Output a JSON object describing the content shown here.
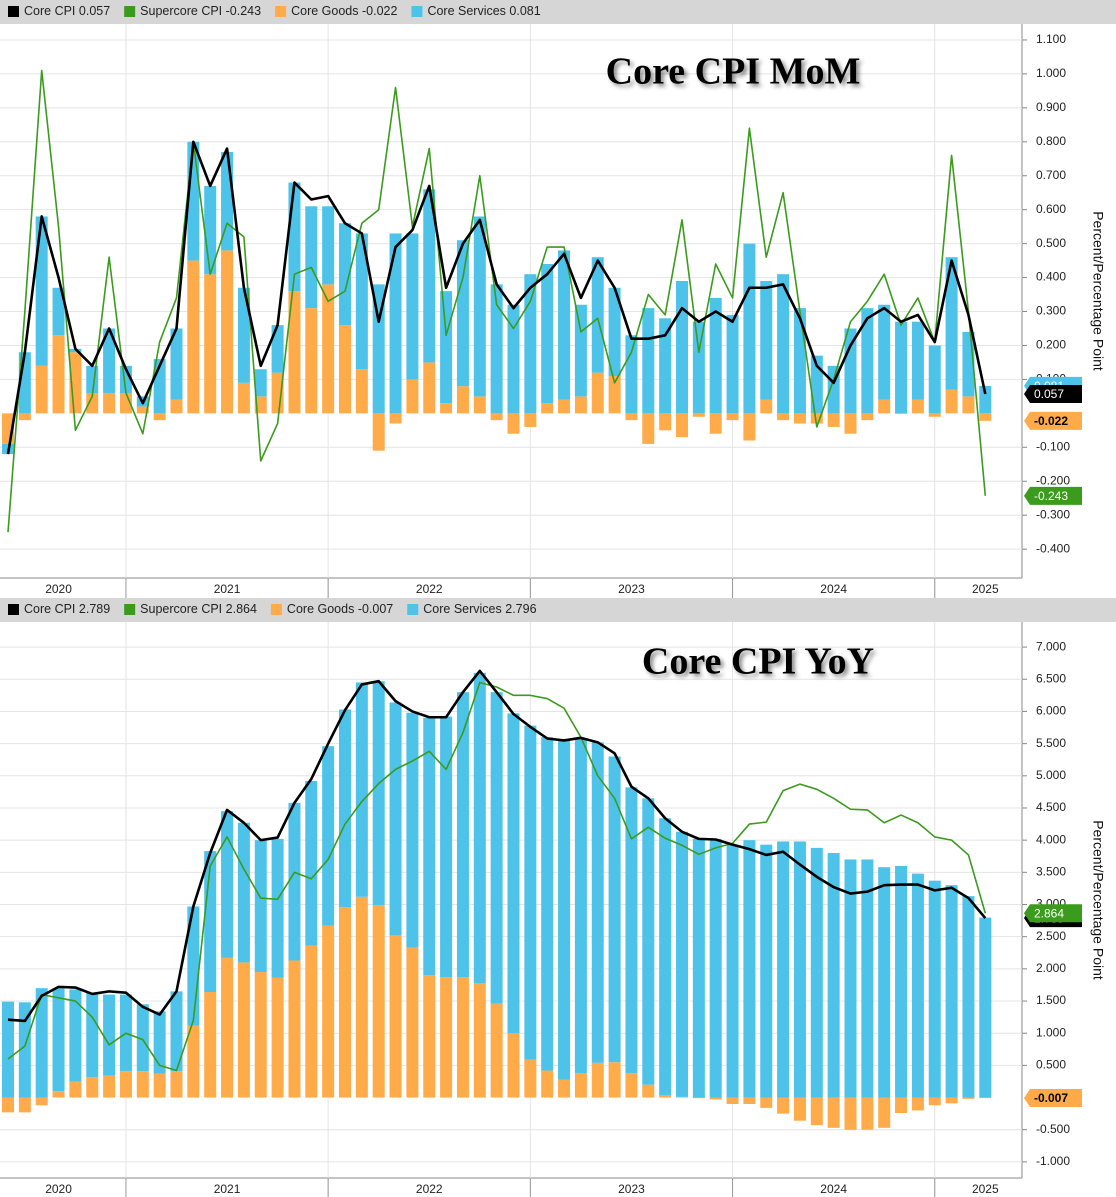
{
  "chart_data": [
    {
      "type": "bar",
      "title": "Core CPI MoM",
      "y_label": "Percent/Percentage Point",
      "categories": [
        null,
        null,
        null,
        "2020",
        null,
        null,
        null,
        null,
        null,
        null,
        null,
        null,
        null,
        "2021",
        null,
        null,
        null,
        null,
        null,
        null,
        null,
        null,
        null,
        null,
        null,
        "2022",
        null,
        null,
        null,
        null,
        null,
        null,
        null,
        null,
        null,
        null,
        null,
        "2023",
        null,
        null,
        null,
        null,
        null,
        null,
        null,
        null,
        null,
        null,
        null,
        "2024",
        null,
        null,
        null,
        null,
        null,
        null,
        null,
        null,
        "2025"
      ],
      "ylim": [
        -0.485,
        1.147
      ],
      "yticks": [
        {
          "value": 1.1,
          "label": "1.100"
        },
        {
          "value": 1.0,
          "label": "1.000"
        },
        {
          "value": 0.9,
          "label": "0.900"
        },
        {
          "value": 0.8,
          "label": "0.800"
        },
        {
          "value": 0.7,
          "label": "0.700"
        },
        {
          "value": 0.6,
          "label": "0.600"
        },
        {
          "value": 0.5,
          "label": "0.500"
        },
        {
          "value": 0.4,
          "label": "0.400"
        },
        {
          "value": 0.3,
          "label": "0.300"
        },
        {
          "value": 0.2,
          "label": "0.200"
        },
        {
          "value": 0.1,
          "label": "0.100"
        },
        {
          "value": -0.1,
          "label": "-0.100"
        },
        {
          "value": -0.2,
          "label": "-0.200"
        },
        {
          "value": -0.3,
          "label": "-0.300"
        },
        {
          "value": -0.4,
          "label": "-0.400"
        }
      ],
      "grid": true,
      "series": [
        {
          "name": "Core CPI",
          "color": "#000000",
          "mark": "line",
          "values": [
            -0.12,
            0.18,
            0.58,
            0.4,
            0.19,
            0.14,
            0.25,
            0.13,
            0.03,
            0.14,
            0.25,
            0.8,
            0.67,
            0.78,
            0.37,
            0.14,
            0.26,
            0.68,
            0.63,
            0.64,
            0.56,
            0.53,
            0.27,
            0.49,
            0.54,
            0.67,
            0.37,
            0.5,
            0.57,
            0.38,
            0.31,
            0.37,
            0.41,
            0.47,
            0.34,
            0.45,
            0.37,
            0.22,
            0.22,
            0.23,
            0.31,
            0.27,
            0.3,
            0.27,
            0.37,
            0.37,
            0.38,
            0.28,
            0.14,
            0.09,
            0.2,
            0.28,
            0.31,
            0.27,
            0.29,
            0.21,
            0.45,
            0.29,
            0.057
          ]
        },
        {
          "name": "Supercore CPI",
          "color": "#3b9b1d",
          "mark": "line",
          "values": [
            -0.35,
            0.3,
            1.01,
            0.55,
            -0.05,
            0.05,
            0.46,
            0.06,
            -0.06,
            0.21,
            0.34,
            0.8,
            0.41,
            0.56,
            0.52,
            -0.14,
            -0.03,
            0.41,
            0.43,
            0.33,
            0.36,
            0.56,
            0.6,
            0.96,
            0.55,
            0.78,
            0.23,
            0.4,
            0.7,
            0.32,
            0.25,
            0.33,
            0.49,
            0.49,
            0.24,
            0.28,
            0.09,
            0.18,
            0.35,
            0.29,
            0.57,
            0.18,
            0.44,
            0.34,
            0.84,
            0.46,
            0.65,
            0.3,
            -0.04,
            0.1,
            0.27,
            0.33,
            0.41,
            0.26,
            0.34,
            0.21,
            0.76,
            0.3,
            -0.243
          ]
        },
        {
          "name": "Core Goods",
          "color": "#ffab4a",
          "mark": "bar",
          "values": [
            -0.09,
            -0.02,
            0.14,
            0.23,
            0.18,
            0.06,
            0.06,
            0.06,
            0.02,
            -0.02,
            0.04,
            0.45,
            0.41,
            0.48,
            0.09,
            0.05,
            0.12,
            0.36,
            0.31,
            0.38,
            0.26,
            0.13,
            -0.11,
            -0.03,
            0.1,
            0.15,
            0.03,
            0.08,
            0.05,
            -0.02,
            -0.06,
            -0.04,
            0.03,
            0.04,
            0.05,
            0.12,
            0.11,
            -0.02,
            -0.09,
            -0.05,
            -0.07,
            -0.01,
            -0.06,
            -0.02,
            -0.08,
            0.04,
            -0.02,
            -0.03,
            -0.03,
            -0.04,
            -0.06,
            -0.02,
            0.04,
            0.0,
            0.04,
            -0.01,
            0.07,
            0.05,
            -0.022
          ]
        },
        {
          "name": "Core Services",
          "color": "#4dc3ea",
          "mark": "bar",
          "values": [
            -0.03,
            0.18,
            0.44,
            0.14,
            0.01,
            0.08,
            0.19,
            0.08,
            0.03,
            0.16,
            0.21,
            0.35,
            0.26,
            0.29,
            0.28,
            0.08,
            0.14,
            0.32,
            0.3,
            0.23,
            0.3,
            0.4,
            0.38,
            0.53,
            0.43,
            0.51,
            0.33,
            0.43,
            0.53,
            0.38,
            0.32,
            0.41,
            0.41,
            0.44,
            0.27,
            0.34,
            0.26,
            0.23,
            0.31,
            0.28,
            0.39,
            0.27,
            0.34,
            0.29,
            0.5,
            0.35,
            0.41,
            0.31,
            0.17,
            0.14,
            0.25,
            0.31,
            0.28,
            0.27,
            0.23,
            0.2,
            0.39,
            0.19,
            0.081
          ]
        }
      ]
    },
    {
      "type": "bar",
      "title": "Core CPI YoY",
      "y_label": "Percent/Percentage Point",
      "categories": [
        null,
        null,
        null,
        "2020",
        null,
        null,
        null,
        null,
        null,
        null,
        null,
        null,
        null,
        "2021",
        null,
        null,
        null,
        null,
        null,
        null,
        null,
        null,
        null,
        null,
        null,
        "2022",
        null,
        null,
        null,
        null,
        null,
        null,
        null,
        null,
        null,
        null,
        null,
        "2023",
        null,
        null,
        null,
        null,
        null,
        null,
        null,
        null,
        null,
        null,
        null,
        "2024",
        null,
        null,
        null,
        null,
        null,
        null,
        null,
        null,
        "2025"
      ],
      "ylim": [
        -1.25,
        7.39
      ],
      "yticks": [
        {
          "value": 7.0,
          "label": "7.000"
        },
        {
          "value": 6.5,
          "label": "6.500"
        },
        {
          "value": 6.0,
          "label": "6.000"
        },
        {
          "value": 5.5,
          "label": "5.500"
        },
        {
          "value": 5.0,
          "label": "5.000"
        },
        {
          "value": 4.5,
          "label": "4.500"
        },
        {
          "value": 4.0,
          "label": "4.000"
        },
        {
          "value": 3.5,
          "label": "3.500"
        },
        {
          "value": 3.0,
          "label": "3.000"
        },
        {
          "value": 2.5,
          "label": "2.500"
        },
        {
          "value": 2.0,
          "label": "2.000"
        },
        {
          "value": 1.5,
          "label": "1.500"
        },
        {
          "value": 1.0,
          "label": "1.000"
        },
        {
          "value": 0.5,
          "label": "0.500"
        },
        {
          "value": -0.5,
          "label": "-0.500"
        },
        {
          "value": -1.0,
          "label": "-1.000"
        }
      ],
      "grid": true,
      "series": [
        {
          "name": "Core CPI",
          "color": "#000000",
          "mark": "line",
          "values": [
            1.21,
            1.19,
            1.58,
            1.72,
            1.71,
            1.61,
            1.65,
            1.63,
            1.41,
            1.29,
            1.65,
            2.97,
            3.8,
            4.47,
            4.27,
            4.0,
            4.04,
            4.58,
            4.95,
            5.5,
            6.02,
            6.42,
            6.47,
            6.16,
            6.0,
            5.91,
            5.91,
            6.3,
            6.63,
            6.3,
            5.96,
            5.76,
            5.58,
            5.55,
            5.59,
            5.52,
            5.35,
            4.83,
            4.65,
            4.34,
            4.13,
            4.02,
            4.01,
            3.93,
            3.86,
            3.77,
            3.82,
            3.62,
            3.43,
            3.27,
            3.17,
            3.2,
            3.3,
            3.31,
            3.31,
            3.22,
            3.26,
            3.1,
            2.789
          ]
        },
        {
          "name": "Supercore CPI",
          "color": "#3b9b1d",
          "mark": "line",
          "values": [
            0.6,
            0.8,
            1.6,
            1.55,
            1.5,
            1.25,
            0.82,
            1.0,
            0.9,
            0.5,
            0.42,
            1.2,
            3.6,
            4.05,
            3.55,
            3.1,
            3.08,
            3.5,
            3.4,
            3.7,
            4.25,
            4.6,
            4.88,
            5.1,
            5.23,
            5.38,
            5.1,
            5.67,
            6.45,
            6.38,
            6.25,
            6.25,
            6.2,
            6.05,
            5.6,
            5.0,
            4.65,
            4.02,
            4.2,
            4.03,
            3.92,
            3.78,
            3.88,
            3.95,
            4.25,
            4.28,
            4.77,
            4.87,
            4.79,
            4.65,
            4.48,
            4.47,
            4.27,
            4.39,
            4.27,
            4.05,
            4.0,
            3.77,
            2.864
          ]
        },
        {
          "name": "Core Goods",
          "color": "#ffab4a",
          "mark": "bar",
          "values": [
            -0.23,
            -0.23,
            -0.12,
            0.1,
            0.25,
            0.32,
            0.34,
            0.41,
            0.41,
            0.37,
            0.41,
            1.12,
            1.64,
            2.17,
            2.1,
            1.95,
            1.86,
            2.13,
            2.36,
            2.67,
            2.96,
            3.12,
            2.99,
            2.52,
            2.33,
            1.9,
            1.87,
            1.87,
            1.78,
            1.46,
            1.0,
            0.59,
            0.42,
            0.28,
            0.38,
            0.54,
            0.55,
            0.38,
            0.2,
            0.04,
            0.01,
            -0.01,
            -0.03,
            -0.1,
            -0.1,
            -0.16,
            -0.25,
            -0.36,
            -0.43,
            -0.47,
            -0.5,
            -0.5,
            -0.47,
            -0.24,
            -0.2,
            -0.12,
            -0.09,
            -0.02,
            -0.007
          ]
        },
        {
          "name": "Core Services",
          "color": "#4dc3ea",
          "mark": "bar",
          "values": [
            1.49,
            1.48,
            1.7,
            1.6,
            1.43,
            1.31,
            1.26,
            1.19,
            1.04,
            0.97,
            1.24,
            1.85,
            2.19,
            2.28,
            2.17,
            2.05,
            2.16,
            2.45,
            2.56,
            2.79,
            3.07,
            3.33,
            3.48,
            3.62,
            3.65,
            4.0,
            4.05,
            4.43,
            4.82,
            4.84,
            4.97,
            5.19,
            5.18,
            5.27,
            5.19,
            4.98,
            4.75,
            4.44,
            4.45,
            4.3,
            4.12,
            4.02,
            4.02,
            3.93,
            4.0,
            3.93,
            3.98,
            3.98,
            3.88,
            3.8,
            3.7,
            3.7,
            3.58,
            3.6,
            3.48,
            3.37,
            3.3,
            3.13,
            2.796
          ]
        }
      ]
    }
  ]
}
